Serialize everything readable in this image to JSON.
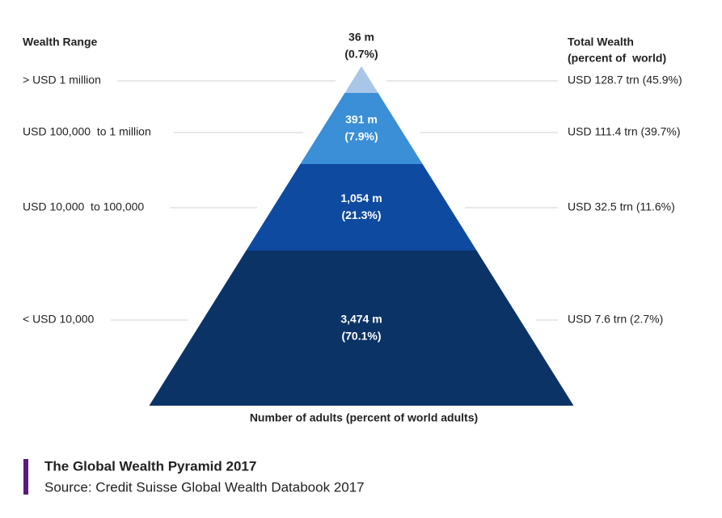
{
  "header": {
    "left": "Wealth Range",
    "right": [
      "Total Wealth",
      "(percent of  world)"
    ]
  },
  "levels": [
    {
      "range": "> USD 1 million",
      "adults": "36 m",
      "share": "(0.7%)",
      "wealth": "USD 128.7 trn (45.9%)"
    },
    {
      "range": "USD 100,000  to 1 million",
      "adults": "391 m",
      "share": "(7.9%)",
      "wealth": "USD 111.4 trn (39.7%)"
    },
    {
      "range": "USD 10,000  to 100,000",
      "adults": "1,054 m",
      "share": "(21.3%)",
      "wealth": "USD 32.5 trn (11.6%)"
    },
    {
      "range": "< USD 10,000",
      "adults": "3,474 m",
      "share": "(70.1%)",
      "wealth": "USD 7.6 trn (2.7%)"
    }
  ],
  "axis_label": "Number of adults (percent of world adults)",
  "caption": {
    "title": "The Global Wealth Pyramid 2017",
    "source": "Source: Credit Suisse Global Wealth Databook 2017"
  }
}
